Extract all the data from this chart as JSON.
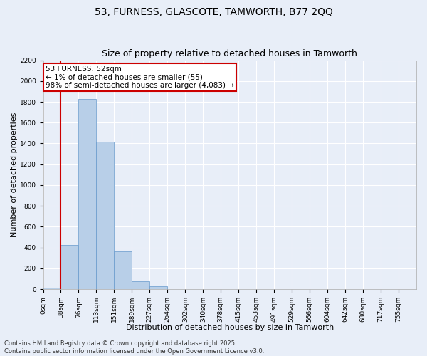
{
  "title": "53, FURNESS, GLASCOTE, TAMWORTH, B77 2QQ",
  "subtitle": "Size of property relative to detached houses in Tamworth",
  "xlabel": "Distribution of detached houses by size in Tamworth",
  "ylabel": "Number of detached properties",
  "bar_labels": [
    "0sqm",
    "38sqm",
    "76sqm",
    "113sqm",
    "151sqm",
    "189sqm",
    "227sqm",
    "264sqm",
    "302sqm",
    "340sqm",
    "378sqm",
    "415sqm",
    "453sqm",
    "491sqm",
    "529sqm",
    "566sqm",
    "604sqm",
    "642sqm",
    "680sqm",
    "717sqm",
    "755sqm"
  ],
  "bar_values": [
    15,
    425,
    1830,
    1415,
    365,
    75,
    30,
    0,
    0,
    0,
    0,
    0,
    0,
    0,
    0,
    0,
    0,
    0,
    0,
    0,
    0
  ],
  "bar_color": "#b8cfe8",
  "bar_edge_color": "#6699cc",
  "highlight_color": "#cc0000",
  "annotation_text": "53 FURNESS: 52sqm\n← 1% of detached houses are smaller (55)\n98% of semi-detached houses are larger (4,083) →",
  "annotation_box_color": "#ffffff",
  "annotation_box_edge_color": "#cc0000",
  "ylim": [
    0,
    2200
  ],
  "yticks": [
    0,
    200,
    400,
    600,
    800,
    1000,
    1200,
    1400,
    1600,
    1800,
    2000,
    2200
  ],
  "background_color": "#e8eef8",
  "grid_color": "#ffffff",
  "footer_text": "Contains HM Land Registry data © Crown copyright and database right 2025.\nContains public sector information licensed under the Open Government Licence v3.0.",
  "title_fontsize": 10,
  "subtitle_fontsize": 9,
  "xlabel_fontsize": 8,
  "ylabel_fontsize": 8,
  "tick_fontsize": 6.5,
  "annotation_fontsize": 7.5,
  "footer_fontsize": 6
}
